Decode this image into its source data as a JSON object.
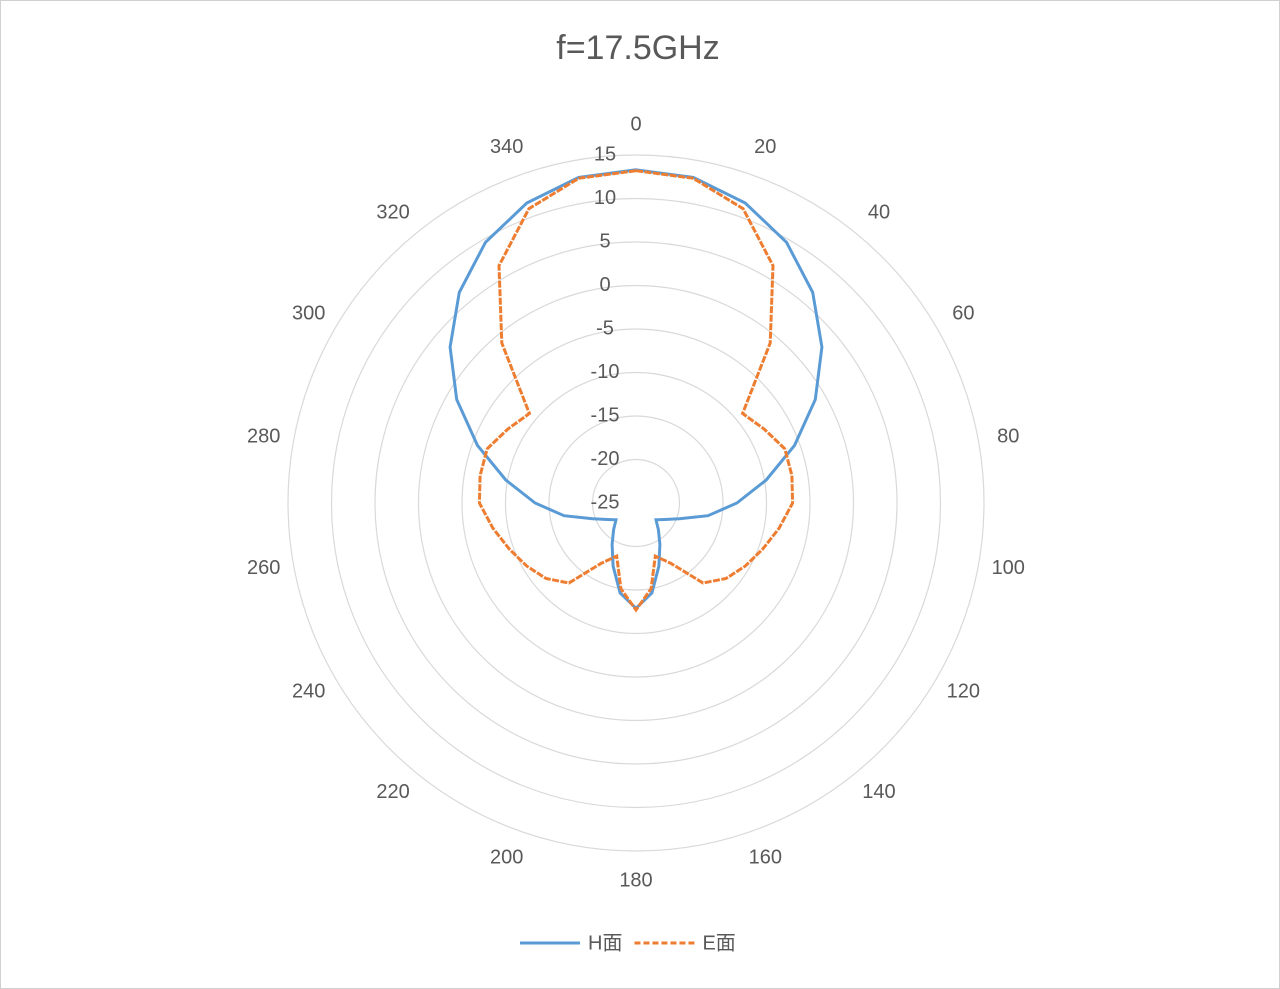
{
  "chart_data": {
    "type": "polar",
    "title": "f=17.5GHz",
    "x": [
      0,
      10,
      20,
      30,
      40,
      50,
      60,
      70,
      80,
      90,
      100,
      110,
      120,
      130,
      140,
      150,
      160,
      170,
      180,
      190,
      200,
      210,
      220,
      230,
      240,
      250,
      260,
      270,
      280,
      290,
      300,
      310,
      320,
      330,
      340,
      350
    ],
    "series": [
      {
        "name": "H面",
        "color": "#5b9bd5",
        "dashed": false,
        "values": [
          13.3,
          13.0,
          11.7,
          9.6,
          6.6,
          2.9,
          -1.2,
          -5.6,
          -9.8,
          -13.4,
          -16.6,
          -19.7,
          -21.2,
          -22,
          -21,
          -19.5,
          -17.3,
          -14.5,
          -12.9,
          -14.5,
          -17.3,
          -19.5,
          -21,
          -22,
          -21.2,
          -19.7,
          -16.6,
          -13.4,
          -9.8,
          -5.6,
          -1.2,
          2.9,
          6.6,
          9.6,
          11.7,
          13.0
        ]
      },
      {
        "name": "E面",
        "color": "#ed7d31",
        "dashed": true,
        "values": [
          13.2,
          12.9,
          11,
          6.5,
          -1,
          -9,
          -8,
          -6.8,
          -6.8,
          -7,
          -8.3,
          -9.5,
          -10.5,
          -11.5,
          -13,
          -17,
          -18.5,
          -15,
          -12.7,
          -15,
          -18.5,
          -17,
          -13,
          -11.5,
          -10.5,
          -9.5,
          -8.3,
          -7,
          -6.8,
          -6.8,
          -8,
          -9,
          -1,
          6.5,
          11,
          12.9
        ]
      }
    ],
    "ylim": [
      -25,
      15
    ],
    "yticks": [
      -25,
      -20,
      -15,
      -10,
      -5,
      0,
      5,
      10,
      15
    ],
    "angle_ticks": [
      0,
      20,
      40,
      60,
      80,
      100,
      120,
      140,
      160,
      180,
      200,
      220,
      240,
      260,
      280,
      300,
      320,
      340
    ],
    "grid": true,
    "legend": "bottom"
  }
}
